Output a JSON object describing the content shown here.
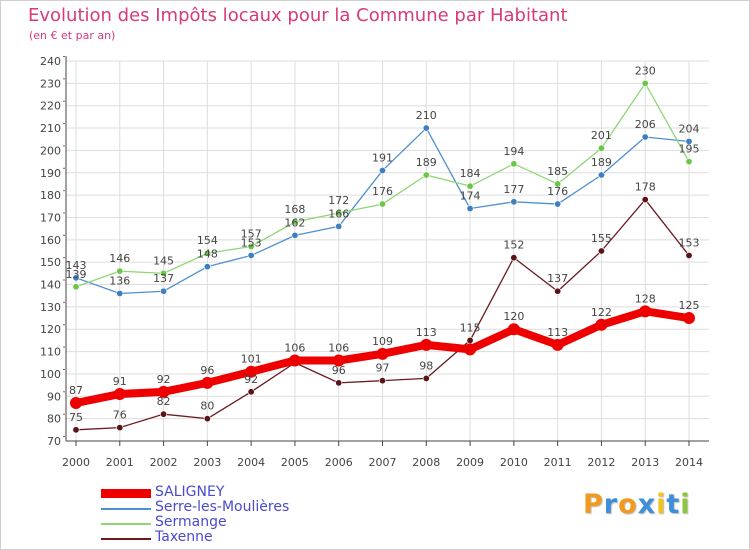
{
  "colors": {
    "title": "#d63a7a",
    "axis": "#444444",
    "grid": "#dddddd",
    "legend_text": "#4a4acd",
    "tick_marks": "#e0305a"
  },
  "chart_data": {
    "type": "line",
    "title": "Evolution des Impôts locaux pour la Commune par Habitant",
    "subtitle": "(en € et par an)",
    "xlabel": "",
    "ylabel": "",
    "x": [
      "2000",
      "2001",
      "2002",
      "2003",
      "2004",
      "2005",
      "2006",
      "2007",
      "2008",
      "2009",
      "2010",
      "2011",
      "2012",
      "2013",
      "2014"
    ],
    "ylim": [
      70,
      240
    ],
    "yticks": [
      70,
      80,
      90,
      100,
      110,
      120,
      130,
      140,
      150,
      160,
      170,
      180,
      190,
      200,
      210,
      220,
      230,
      240
    ],
    "grid": true,
    "legend_position": "bottom-left",
    "series": [
      {
        "name": "Taxenne",
        "color": "#6b1a1f",
        "dot_color": "#5a1418",
        "values": [
          75,
          76,
          82,
          80,
          92,
          105,
          96,
          97,
          98,
          115,
          152,
          137,
          155,
          178,
          153
        ],
        "labels": [
          "75",
          "76",
          "82",
          "80",
          "92",
          "",
          "96",
          "97",
          "98",
          "115",
          "152",
          "137",
          "155",
          "178",
          "153"
        ]
      },
      {
        "name": "Serre-les-Moulières",
        "color": "#4f8fcf",
        "dot_color": "#3f7fc0",
        "values": [
          143,
          136,
          137,
          148,
          153,
          162,
          166,
          191,
          210,
          174,
          177,
          176,
          189,
          206,
          204
        ],
        "labels": [
          "143",
          "136",
          "137",
          "148",
          "153",
          "162",
          "166",
          "191",
          "210",
          "174",
          "177",
          "176",
          "189",
          "206",
          "204"
        ]
      },
      {
        "name": "Sermange",
        "color": "#8fd675",
        "dot_color": "#6cc64a",
        "values": [
          139,
          146,
          145,
          154,
          157,
          168,
          172,
          176,
          189,
          184,
          194,
          185,
          201,
          230,
          195
        ],
        "labels": [
          "139",
          "146",
          "145",
          "154",
          "157",
          "168",
          "172",
          "176",
          "189",
          "184",
          "194",
          "185",
          "201",
          "230",
          "195"
        ]
      },
      {
        "name": "SALIGNEY",
        "color": "#ee0000",
        "dot_color": "#ee0000",
        "values": [
          87,
          91,
          92,
          96,
          101,
          106,
          106,
          109,
          113,
          111,
          120,
          113,
          122,
          128,
          125
        ],
        "labels": [
          "87",
          "91",
          "92",
          "96",
          "101",
          "106",
          "106",
          "109",
          "113",
          "",
          "120",
          "113",
          "122",
          "128",
          "125"
        ]
      }
    ]
  },
  "legend": {
    "items": [
      {
        "label": "SALIGNEY"
      },
      {
        "label": "Serre-les-Moulières"
      },
      {
        "label": "Sermange"
      },
      {
        "label": "Taxenne"
      }
    ]
  },
  "logo": {
    "letters": [
      "P",
      "r",
      "o",
      "x",
      "i",
      "t",
      "i"
    ],
    "letter_colors": [
      "#f29a1f",
      "#3c8fd8",
      "#f29a1f",
      "#3c8fd8",
      "#f2c21f",
      "#3c8fd8",
      "#8cc63f"
    ]
  }
}
